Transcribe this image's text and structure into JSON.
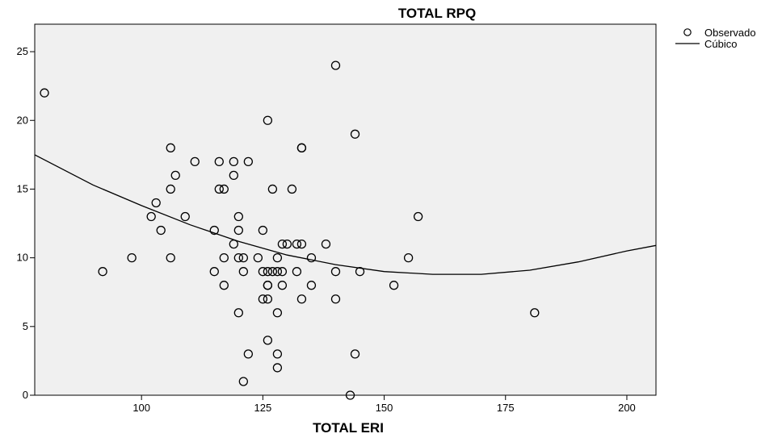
{
  "chart_data": {
    "type": "scatter",
    "title": "TOTAL RPQ",
    "xlabel": "TOTAL ERI",
    "ylabel": "",
    "xlim": [
      78,
      206
    ],
    "ylim": [
      0,
      27
    ],
    "xticks": [
      100,
      125,
      150,
      175,
      200
    ],
    "yticks": [
      0,
      5,
      10,
      15,
      20,
      25
    ],
    "grid": false,
    "legend_position": "top-right outside",
    "series": [
      {
        "name": "Observado",
        "kind": "points",
        "x": [
          80,
          92,
          98,
          102,
          103,
          104,
          106,
          106,
          106,
          107,
          109,
          111,
          115,
          115,
          116,
          116,
          117,
          117,
          117,
          119,
          119,
          119,
          120,
          120,
          120,
          120,
          121,
          121,
          121,
          122,
          122,
          124,
          125,
          125,
          125,
          126,
          126,
          126,
          126,
          126,
          126,
          127,
          127,
          128,
          128,
          128,
          128,
          128,
          129,
          129,
          129,
          130,
          131,
          132,
          132,
          133,
          133,
          133,
          133,
          135,
          135,
          138,
          140,
          140,
          140,
          143,
          144,
          144,
          145,
          152,
          155,
          157,
          181
        ],
        "y": [
          22,
          9,
          10,
          13,
          14,
          12,
          18,
          15,
          10,
          16,
          13,
          17,
          12,
          9,
          17,
          15,
          15,
          10,
          8,
          17,
          16,
          11,
          13,
          12,
          10,
          6,
          10,
          9,
          1,
          17,
          3,
          10,
          12,
          9,
          7,
          20,
          8,
          8,
          7,
          4,
          9,
          15,
          9,
          10,
          6,
          3,
          2,
          9,
          11,
          9,
          8,
          11,
          15,
          11,
          9,
          18,
          18,
          11,
          7,
          10,
          8,
          11,
          24,
          9,
          7,
          0,
          19,
          3,
          9,
          8,
          10,
          13,
          6
        ]
      },
      {
        "name": "Cúbico",
        "kind": "line",
        "x": [
          78,
          90,
          100,
          110,
          120,
          130,
          140,
          150,
          160,
          170,
          180,
          190,
          200,
          206
        ],
        "y": [
          17.5,
          15.3,
          13.8,
          12.4,
          11.2,
          10.2,
          9.5,
          9.0,
          8.8,
          8.8,
          9.1,
          9.7,
          10.5,
          10.9
        ]
      }
    ]
  }
}
